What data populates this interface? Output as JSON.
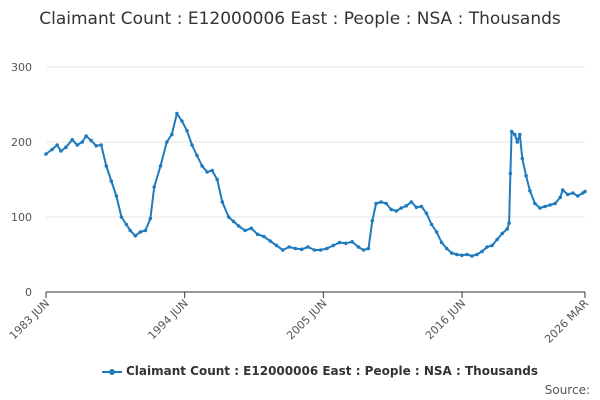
{
  "title": "Claimant Count : E12000006 East : People : NSA : Thousands",
  "source_label": "Source:",
  "chart_data": {
    "type": "line",
    "title": "Claimant Count : E12000006 East : People : NSA : Thousands",
    "xlabel": "",
    "ylabel": "",
    "ylim": [
      0,
      300
    ],
    "yticks": [
      0,
      100,
      200,
      300
    ],
    "xticks": [
      "1983 JUN",
      "1994 JUN",
      "2005 JUN",
      "2016 JUN",
      "2026 MAR"
    ],
    "grid": true,
    "legend_position": "bottom",
    "colors": {
      "series": "#1f7bbd",
      "grid": "#e6e6e6",
      "axis": "#333333"
    },
    "series": [
      {
        "name": "Claimant Count : E12000006 East : People : NSA : Thousands",
        "points": [
          [
            1983.42,
            184
          ],
          [
            1983.9,
            190
          ],
          [
            1984.3,
            196
          ],
          [
            1984.6,
            188
          ],
          [
            1985.0,
            193
          ],
          [
            1985.5,
            203
          ],
          [
            1985.9,
            196
          ],
          [
            1986.3,
            200
          ],
          [
            1986.6,
            208
          ],
          [
            1987.0,
            202
          ],
          [
            1987.4,
            195
          ],
          [
            1987.8,
            196
          ],
          [
            1988.2,
            168
          ],
          [
            1988.6,
            148
          ],
          [
            1989.0,
            128
          ],
          [
            1989.4,
            100
          ],
          [
            1989.8,
            90
          ],
          [
            1990.1,
            82
          ],
          [
            1990.5,
            75
          ],
          [
            1990.9,
            80
          ],
          [
            1991.3,
            82
          ],
          [
            1991.7,
            98
          ],
          [
            1992.0,
            140
          ],
          [
            1992.5,
            168
          ],
          [
            1993.0,
            200
          ],
          [
            1993.4,
            210
          ],
          [
            1993.8,
            238
          ],
          [
            1994.2,
            228
          ],
          [
            1994.6,
            215
          ],
          [
            1995.0,
            196
          ],
          [
            1995.4,
            182
          ],
          [
            1995.8,
            168
          ],
          [
            1996.2,
            160
          ],
          [
            1996.6,
            162
          ],
          [
            1997.0,
            150
          ],
          [
            1997.4,
            120
          ],
          [
            1997.9,
            100
          ],
          [
            1998.3,
            94
          ],
          [
            1998.7,
            88
          ],
          [
            1999.2,
            82
          ],
          [
            1999.7,
            85
          ],
          [
            2000.2,
            77
          ],
          [
            2000.7,
            74
          ],
          [
            2001.2,
            68
          ],
          [
            2001.7,
            62
          ],
          [
            2002.2,
            56
          ],
          [
            2002.7,
            60
          ],
          [
            2003.2,
            58
          ],
          [
            2003.7,
            57
          ],
          [
            2004.2,
            60
          ],
          [
            2004.7,
            56
          ],
          [
            2005.2,
            56
          ],
          [
            2005.7,
            58
          ],
          [
            2006.2,
            62
          ],
          [
            2006.7,
            66
          ],
          [
            2007.2,
            65
          ],
          [
            2007.7,
            67
          ],
          [
            2008.2,
            60
          ],
          [
            2008.6,
            56
          ],
          [
            2009.0,
            58
          ],
          [
            2009.3,
            95
          ],
          [
            2009.6,
            118
          ],
          [
            2010.0,
            120
          ],
          [
            2010.4,
            118
          ],
          [
            2010.8,
            110
          ],
          [
            2011.2,
            108
          ],
          [
            2011.6,
            112
          ],
          [
            2012.0,
            115
          ],
          [
            2012.4,
            120
          ],
          [
            2012.8,
            113
          ],
          [
            2013.2,
            114
          ],
          [
            2013.6,
            105
          ],
          [
            2014.0,
            90
          ],
          [
            2014.4,
            80
          ],
          [
            2014.8,
            66
          ],
          [
            2015.2,
            58
          ],
          [
            2015.6,
            52
          ],
          [
            2016.0,
            50
          ],
          [
            2016.4,
            49
          ],
          [
            2016.8,
            50
          ],
          [
            2017.2,
            48
          ],
          [
            2017.6,
            50
          ],
          [
            2018.0,
            54
          ],
          [
            2018.4,
            60
          ],
          [
            2018.8,
            62
          ],
          [
            2019.2,
            70
          ],
          [
            2019.6,
            78
          ],
          [
            2020.0,
            84
          ],
          [
            2020.15,
            92
          ],
          [
            2020.25,
            158
          ],
          [
            2020.35,
            214
          ],
          [
            2020.6,
            210
          ],
          [
            2020.8,
            200
          ],
          [
            2021.0,
            210
          ],
          [
            2021.2,
            178
          ],
          [
            2021.5,
            155
          ],
          [
            2021.8,
            135
          ],
          [
            2022.2,
            118
          ],
          [
            2022.6,
            112
          ],
          [
            2023.0,
            114
          ],
          [
            2023.4,
            116
          ],
          [
            2023.8,
            118
          ],
          [
            2024.2,
            126
          ],
          [
            2024.4,
            136
          ],
          [
            2024.8,
            130
          ],
          [
            2025.2,
            132
          ],
          [
            2025.6,
            128
          ],
          [
            2026.0,
            132
          ],
          [
            2026.17,
            134
          ]
        ]
      }
    ]
  }
}
